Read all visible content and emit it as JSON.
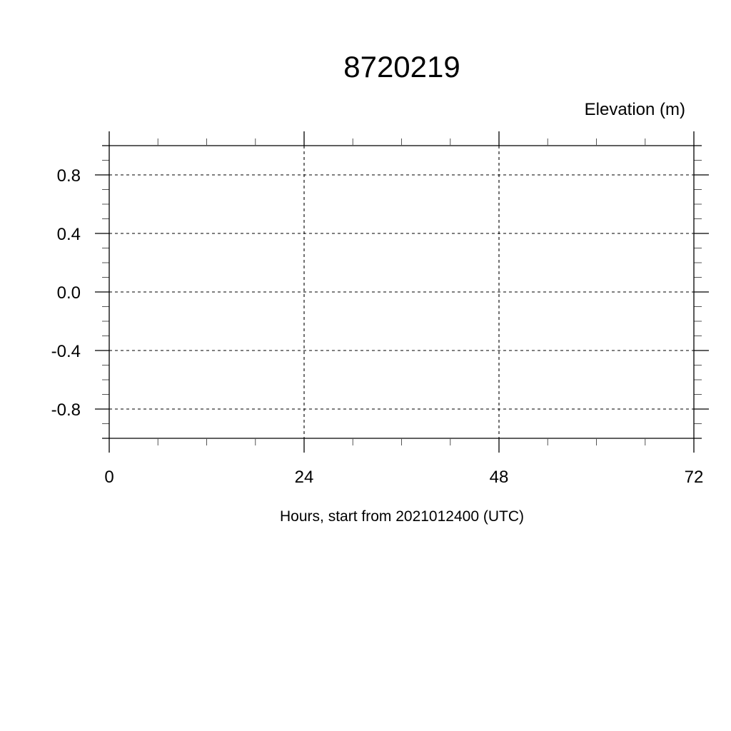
{
  "chart_data": {
    "type": "line",
    "title": "8720219",
    "ylabel": "Elevation (m)",
    "xlabel": "Hours, start from 2021012400 (UTC)",
    "xlim": [
      0,
      72
    ],
    "ylim": [
      -1,
      1
    ],
    "x_ticks": [
      0,
      24,
      48,
      72
    ],
    "x_tick_labels": [
      "0",
      "24",
      "48",
      "72"
    ],
    "x_minor_step": 6,
    "y_ticks": [
      0.8,
      0.4,
      0.0,
      -0.4,
      -0.8
    ],
    "y_tick_labels": [
      "0.8",
      "0.4",
      "0.0",
      "-0.4",
      "-0.8"
    ],
    "y_minor_step": 0.1,
    "grid": true,
    "grid_style": "dashed",
    "series": []
  }
}
